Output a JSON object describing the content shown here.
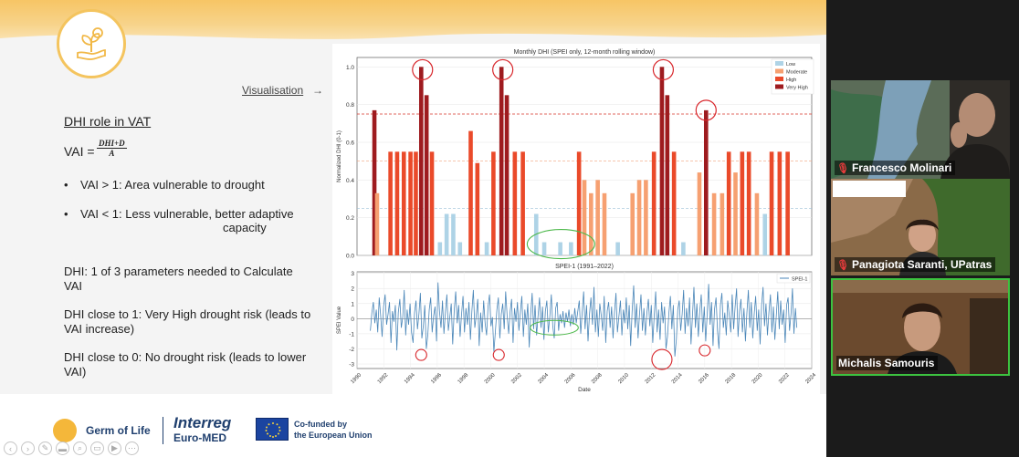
{
  "slide": {
    "visualisation_link": "Visualisation",
    "visualisation_arrow": "→",
    "dhi_title": "DHI role in VAT",
    "vai_label": "VAI =",
    "vai_numerator": "DHI+D",
    "vai_denominator": "A",
    "bullet_dot": "•",
    "bullet_1": "VAI > 1: Area vulnerable to drought",
    "bullet_2": "VAI < 1: Less vulnerable, better adaptive",
    "bullet_2_cont": "capacity",
    "para_1": "DHI: 1 of 3 parameters needed to Calculate VAI",
    "para_2": "DHI close to 1: Very High drought risk (leads to VAI increase)",
    "para_3": "DHI close to 0: No drought risk (leads to lower VAI)"
  },
  "footer": {
    "germ_of_life": "Germ of Life",
    "interreg": "Interreg",
    "euro_med": "Euro-MED",
    "cofunded_1": "Co-funded by",
    "cofunded_2": "the European Union"
  },
  "participants": [
    {
      "name": "Francesco Molinari"
    },
    {
      "name": "Panagiota Saranti, UPatras"
    },
    {
      "name": "Michalis Samouris"
    }
  ],
  "chart_data": [
    {
      "type": "bar",
      "title": "Monthly DHI (SPEI only, 12-month rolling window)",
      "xlabel": "",
      "ylabel": "Normalized DHI (0-1)",
      "ylim": [
        0,
        1.05
      ],
      "xlim": [
        1990,
        2024
      ],
      "yticks": [
        0.0,
        0.2,
        0.4,
        0.6,
        0.8,
        1.0
      ],
      "thresholds": [
        0.25,
        0.5,
        0.75
      ],
      "legend": [
        "Low",
        "Moderate",
        "High",
        "Very High"
      ],
      "legend_position": "top-right",
      "colors": {
        "Low": "#aed3e6",
        "Moderate": "#f6a071",
        "High": "#ea4a2a",
        "Very High": "#9e1b1f"
      },
      "grid": true,
      "bars": [
        {
          "x": 1991.3,
          "y": 0.77,
          "cat": "Very High"
        },
        {
          "x": 1991.5,
          "y": 0.33,
          "cat": "Moderate"
        },
        {
          "x": 1992.5,
          "y": 0.55,
          "cat": "High"
        },
        {
          "x": 1993.0,
          "y": 0.55,
          "cat": "High"
        },
        {
          "x": 1993.5,
          "y": 0.55,
          "cat": "High"
        },
        {
          "x": 1994.0,
          "y": 0.55,
          "cat": "High"
        },
        {
          "x": 1994.4,
          "y": 0.55,
          "cat": "High"
        },
        {
          "x": 1994.8,
          "y": 1.0,
          "cat": "Very High"
        },
        {
          "x": 1995.2,
          "y": 0.85,
          "cat": "Very High"
        },
        {
          "x": 1995.6,
          "y": 0.55,
          "cat": "High"
        },
        {
          "x": 1996.2,
          "y": 0.07,
          "cat": "Low"
        },
        {
          "x": 1996.7,
          "y": 0.22,
          "cat": "Low"
        },
        {
          "x": 1997.2,
          "y": 0.22,
          "cat": "Low"
        },
        {
          "x": 1997.7,
          "y": 0.07,
          "cat": "Low"
        },
        {
          "x": 1998.5,
          "y": 0.66,
          "cat": "High"
        },
        {
          "x": 1999.0,
          "y": 0.49,
          "cat": "High"
        },
        {
          "x": 1999.7,
          "y": 0.07,
          "cat": "Low"
        },
        {
          "x": 2000.2,
          "y": 0.55,
          "cat": "High"
        },
        {
          "x": 2000.8,
          "y": 1.0,
          "cat": "Very High"
        },
        {
          "x": 2001.2,
          "y": 0.85,
          "cat": "Very High"
        },
        {
          "x": 2001.8,
          "y": 0.55,
          "cat": "High"
        },
        {
          "x": 2002.4,
          "y": 0.55,
          "cat": "High"
        },
        {
          "x": 2003.4,
          "y": 0.22,
          "cat": "Low"
        },
        {
          "x": 2004.0,
          "y": 0.07,
          "cat": "Low"
        },
        {
          "x": 2005.2,
          "y": 0.07,
          "cat": "Low"
        },
        {
          "x": 2006.0,
          "y": 0.07,
          "cat": "Low"
        },
        {
          "x": 2006.6,
          "y": 0.55,
          "cat": "High"
        },
        {
          "x": 2007.0,
          "y": 0.4,
          "cat": "Moderate"
        },
        {
          "x": 2007.5,
          "y": 0.33,
          "cat": "Moderate"
        },
        {
          "x": 2008.0,
          "y": 0.4,
          "cat": "Moderate"
        },
        {
          "x": 2008.5,
          "y": 0.33,
          "cat": "Moderate"
        },
        {
          "x": 2009.5,
          "y": 0.07,
          "cat": "Low"
        },
        {
          "x": 2010.6,
          "y": 0.33,
          "cat": "Moderate"
        },
        {
          "x": 2011.1,
          "y": 0.4,
          "cat": "Moderate"
        },
        {
          "x": 2011.6,
          "y": 0.4,
          "cat": "Moderate"
        },
        {
          "x": 2012.2,
          "y": 0.55,
          "cat": "High"
        },
        {
          "x": 2012.8,
          "y": 1.0,
          "cat": "Very High"
        },
        {
          "x": 2013.2,
          "y": 0.85,
          "cat": "Very High"
        },
        {
          "x": 2013.7,
          "y": 0.55,
          "cat": "High"
        },
        {
          "x": 2014.4,
          "y": 0.07,
          "cat": "Low"
        },
        {
          "x": 2015.6,
          "y": 0.44,
          "cat": "Moderate"
        },
        {
          "x": 2016.1,
          "y": 0.77,
          "cat": "Very High"
        },
        {
          "x": 2016.7,
          "y": 0.33,
          "cat": "Moderate"
        },
        {
          "x": 2017.3,
          "y": 0.33,
          "cat": "Moderate"
        },
        {
          "x": 2017.8,
          "y": 0.55,
          "cat": "High"
        },
        {
          "x": 2018.3,
          "y": 0.44,
          "cat": "Moderate"
        },
        {
          "x": 2018.8,
          "y": 0.55,
          "cat": "High"
        },
        {
          "x": 2019.3,
          "y": 0.55,
          "cat": "High"
        },
        {
          "x": 2019.9,
          "y": 0.33,
          "cat": "Moderate"
        },
        {
          "x": 2020.5,
          "y": 0.22,
          "cat": "Low"
        },
        {
          "x": 2021.0,
          "y": 0.55,
          "cat": "High"
        },
        {
          "x": 2021.6,
          "y": 0.55,
          "cat": "High"
        },
        {
          "x": 2022.2,
          "y": 0.55,
          "cat": "High"
        }
      ],
      "annotations_red_circles_x": [
        1994.9,
        2000.9,
        2012.9,
        2016.1
      ],
      "annotation_green_ellipse_x": [
        2003.0,
        2007.5
      ]
    },
    {
      "type": "line",
      "title": "SPEI-1 (1991–2022)",
      "xlabel": "Date",
      "ylabel": "SPEI Value",
      "ylim": [
        -3.3,
        3.1
      ],
      "xlim": [
        1990,
        2024
      ],
      "yticks": [
        -3,
        -2,
        -1,
        0,
        1,
        2,
        3
      ],
      "xticks": [
        1990,
        1992,
        1994,
        1996,
        1998,
        2000,
        2002,
        2004,
        2006,
        2008,
        2010,
        2012,
        2014,
        2016,
        2018,
        2020,
        2022,
        2024
      ],
      "legend": [
        "SPEI-1"
      ],
      "legend_position": "top-right",
      "color": "#4a86b8",
      "grid": true,
      "series_note": "",
      "series": [
        {
          "name": "SPEI-1",
          "x_start": 1991.0,
          "x_step": 0.0833,
          "values": [
            -0.8,
            0.4,
            1.1,
            -0.3,
            0.6,
            -0.9,
            1.4,
            0.2,
            -1.2,
            0.8,
            1.6,
            -0.4,
            0.3,
            1.1,
            -1.6,
            0.5,
            -0.2,
            0.9,
            -2.1,
            0.4,
            1.3,
            -0.6,
            0.1,
            1.9,
            -1.1,
            0.6,
            -0.4,
            1.0,
            -0.9,
            -1.6,
            0.4,
            1.2,
            -0.7,
            0.3,
            1.7,
            -1.3,
            -0.5,
            0.9,
            -2.0,
            -1.1,
            0.6,
            1.4,
            -0.9,
            0.2,
            0.8,
            -1.5,
            2.4,
            0.5,
            -0.6,
            1.2,
            -1.0,
            0.4,
            1.6,
            -0.8,
            0.1,
            1.0,
            -1.7,
            0.6,
            1.8,
            -0.3,
            0.9,
            -1.2,
            0.3,
            1.5,
            -0.9,
            0.7,
            -0.4,
            1.1,
            -1.4,
            0.5,
            1.9,
            -0.6,
            0.2,
            1.3,
            -1.8,
            0.4,
            -0.9,
            1.2,
            -0.3,
            -1.1,
            0.8,
            1.6,
            -0.5,
            0.1,
            -2.2,
            -0.8,
            0.6,
            1.4,
            -1.3,
            0.3,
            1.0,
            -0.7,
            1.8,
            0.2,
            -1.0,
            0.5,
            1.3,
            -1.6,
            0.7,
            -0.2,
            1.1,
            -0.8,
            0.4,
            1.5,
            -1.2,
            0.6,
            -0.4,
            1.0,
            -1.9,
            0.3,
            1.7,
            -0.7,
            0.9,
            -1.1,
            0.2,
            1.4,
            -0.6,
            0.8,
            -1.4,
            0.5,
            1.2,
            -0.9,
            0.1,
            1.6,
            -0.5,
            -1.3,
            0.7,
            1.1,
            -0.8,
            0.3,
            -0.3,
            0.5,
            -0.6,
            0.4,
            -0.2,
            0.6,
            -0.5,
            0.3,
            -0.4,
            0.7,
            -0.3,
            0.5,
            1.2,
            -1.0,
            0.4,
            1.8,
            -0.7,
            0.9,
            -1.5,
            0.3,
            1.4,
            -0.4,
            2.1,
            -0.9,
            0.6,
            -1.2,
            1.0,
            0.2,
            -0.8,
            1.5,
            -1.6,
            0.5,
            1.1,
            -0.6,
            0.8,
            -1.3,
            0.4,
            1.7,
            -0.9,
            0.2,
            1.2,
            -1.1,
            0.6,
            -0.3,
            1.4,
            -0.7,
            0.9,
            -1.8,
            0.5,
            2.2,
            -0.6,
            1.0,
            -1.3,
            0.3,
            1.6,
            -0.8,
            0.7,
            -1.1,
            0.4,
            1.3,
            -0.5,
            0.9,
            -1.6,
            0.2,
            1.8,
            -0.9,
            0.6,
            -1.4,
            1.1,
            -0.3,
            0.8,
            -2.0,
            -1.2,
            0.4,
            1.5,
            -0.7,
            0.9,
            -2.5,
            -1.4,
            0.6,
            1.2,
            -0.8,
            0.3,
            1.9,
            -1.0,
            0.7,
            -0.5,
            1.4,
            -1.7,
            0.2,
            2.1,
            -0.6,
            1.0,
            -1.2,
            0.5,
            1.6,
            -0.9,
            0.8,
            -1.5,
            0.3,
            2.3,
            -0.4,
            1.1,
            -1.8,
            0.6,
            1.4,
            -0.8,
            -2.0,
            0.9,
            1.7,
            -0.6,
            0.4,
            -1.1,
            1.2,
            0.2,
            -0.9,
            1.6,
            -0.7,
            0.8,
            2.0,
            -1.2,
            0.5,
            1.3,
            -0.9,
            0.7,
            -1.5,
            0.4,
            1.9,
            -0.6,
            1.1,
            -1.3,
            0.3,
            1.5,
            -0.8,
            0.6,
            -1.7,
            0.9,
            2.1,
            -0.5,
            1.0,
            -1.1,
            0.4,
            1.6,
            -0.9,
            0.8,
            -1.4,
            0.2,
            1.8,
            -0.7,
            1.2,
            -0.4,
            0.6,
            -1.6,
            0.9,
            1.4,
            -0.8,
            0.3,
            2.0,
            -1.0,
            0.7,
            -0.6
          ]
        }
      ],
      "annotations_red_circles_x": [
        1994.8,
        2000.6,
        2012.8,
        2016.0
      ],
      "annotation_green_ellipse_x": [
        2003.5,
        2006.0
      ]
    }
  ]
}
